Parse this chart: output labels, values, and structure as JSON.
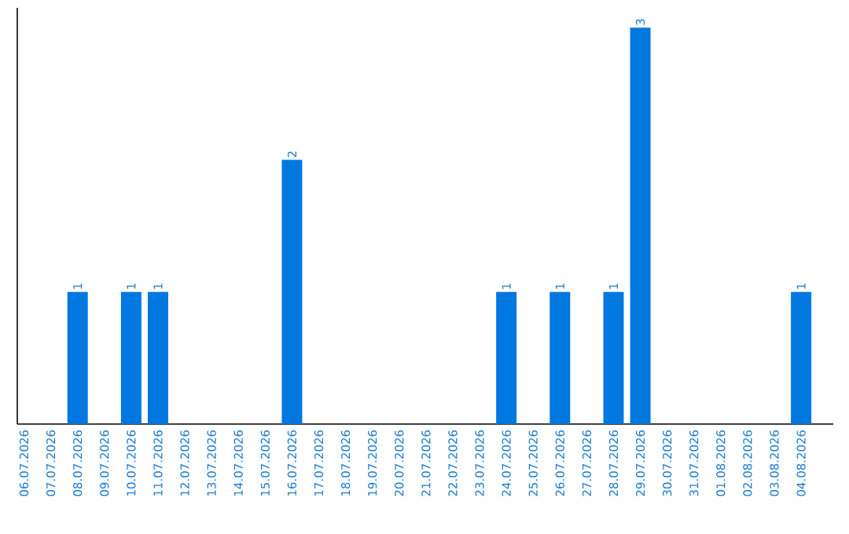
{
  "chart_data": {
    "type": "bar",
    "categories": [
      "06.07.2026",
      "07.07.2026",
      "08.07.2026",
      "09.07.2026",
      "10.07.2026",
      "11.07.2026",
      "12.07.2026",
      "13.07.2026",
      "14.07.2026",
      "15.07.2026",
      "16.07.2026",
      "17.07.2026",
      "18.07.2026",
      "19.07.2026",
      "20.07.2026",
      "21.07.2026",
      "22.07.2026",
      "23.07.2026",
      "24.07.2026",
      "25.07.2026",
      "26.07.2026",
      "27.07.2026",
      "28.07.2026",
      "29.07.2026",
      "30.07.2026",
      "31.07.2026",
      "01.08.2026",
      "02.08.2026",
      "03.08.2026",
      "04.08.2026"
    ],
    "values": [
      0,
      0,
      1,
      0,
      1,
      1,
      0,
      0,
      0,
      0,
      2,
      0,
      0,
      0,
      0,
      0,
      0,
      0,
      1,
      0,
      1,
      0,
      1,
      3,
      0,
      0,
      0,
      0,
      0,
      1
    ],
    "value_labels": [
      null,
      null,
      "1",
      null,
      "1",
      "1",
      null,
      null,
      null,
      null,
      "2",
      null,
      null,
      null,
      null,
      null,
      null,
      null,
      "1",
      null,
      "1",
      null,
      "1",
      "3",
      null,
      null,
      null,
      null,
      null,
      "1"
    ],
    "color": "#0078e0",
    "tick_labels": "x"
  }
}
